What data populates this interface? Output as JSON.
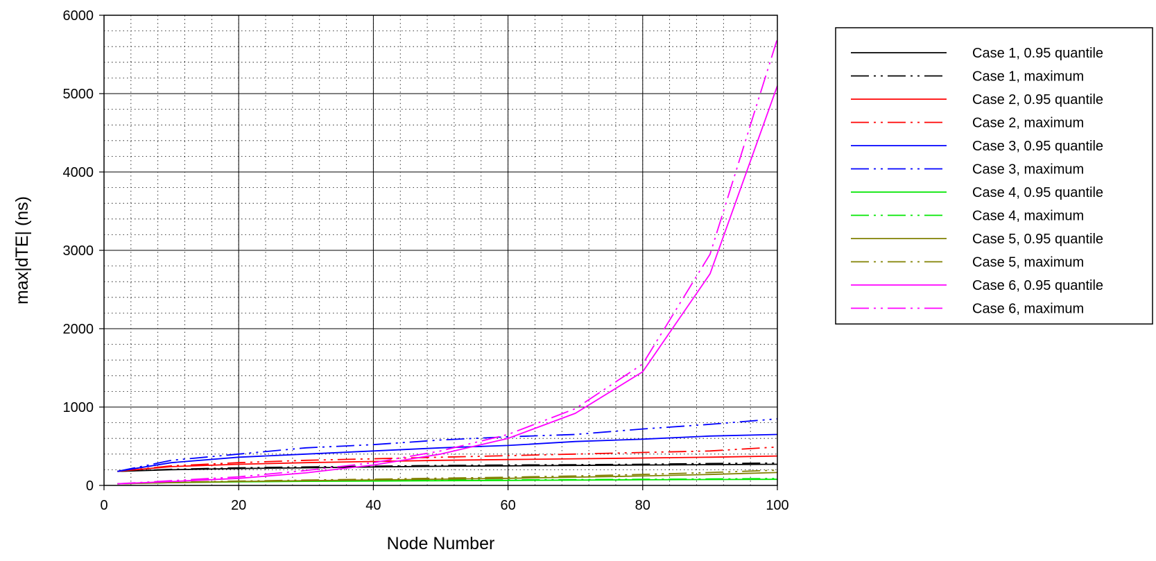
{
  "chart_data": {
    "type": "line",
    "title": "",
    "xlabel": "Node Number",
    "ylabel": "max|dTE| (ns)",
    "xlim": [
      0,
      100
    ],
    "ylim": [
      0,
      6000
    ],
    "x_ticks": [
      0,
      20,
      40,
      60,
      80,
      100
    ],
    "y_ticks": [
      0,
      1000,
      2000,
      3000,
      4000,
      5000,
      6000
    ],
    "grid": {
      "major": true,
      "minor": true,
      "minor_x_step": 4,
      "minor_y_step": 200
    },
    "legend_position": "right",
    "x": [
      2,
      10,
      20,
      30,
      40,
      50,
      60,
      70,
      80,
      90,
      100
    ],
    "series": [
      {
        "name": "Case 1, 0.95 quantile",
        "color": "#000000",
        "style": "solid",
        "values": [
          180,
          200,
          215,
          225,
          235,
          245,
          250,
          255,
          260,
          265,
          270
        ]
      },
      {
        "name": "Case 1, maximum",
        "color": "#000000",
        "style": "dashdot",
        "values": [
          180,
          205,
          225,
          235,
          245,
          255,
          260,
          265,
          270,
          280,
          285
        ]
      },
      {
        "name": "Case 2, 0.95 quantile",
        "color": "#ff0000",
        "style": "solid",
        "values": [
          180,
          240,
          270,
          290,
          305,
          320,
          330,
          340,
          350,
          360,
          375
        ]
      },
      {
        "name": "Case 2, maximum",
        "color": "#ff0000",
        "style": "dashdot",
        "values": [
          180,
          250,
          290,
          320,
          340,
          360,
          380,
          400,
          420,
          440,
          490
        ]
      },
      {
        "name": "Case 3, 0.95 quantile",
        "color": "#0000ff",
        "style": "solid",
        "values": [
          180,
          290,
          360,
          400,
          440,
          480,
          510,
          560,
          590,
          630,
          650
        ]
      },
      {
        "name": "Case 3, maximum",
        "color": "#0000ff",
        "style": "dashdot",
        "values": [
          180,
          320,
          400,
          480,
          520,
          580,
          620,
          650,
          720,
          780,
          850
        ]
      },
      {
        "name": "Case 4, 0.95 quantile",
        "color": "#00e600",
        "style": "solid",
        "values": [
          20,
          35,
          45,
          52,
          56,
          60,
          64,
          68,
          72,
          75,
          78
        ]
      },
      {
        "name": "Case 4, maximum",
        "color": "#00e600",
        "style": "dashdot",
        "values": [
          20,
          40,
          50,
          58,
          62,
          66,
          70,
          74,
          78,
          82,
          88
        ]
      },
      {
        "name": "Case 5, 0.95 quantile",
        "color": "#808000",
        "style": "solid",
        "values": [
          20,
          35,
          50,
          60,
          70,
          80,
          90,
          105,
          120,
          140,
          165
        ]
      },
      {
        "name": "Case 5, maximum",
        "color": "#808000",
        "style": "dashdot",
        "values": [
          20,
          40,
          55,
          68,
          80,
          92,
          105,
          120,
          140,
          165,
          195
        ]
      },
      {
        "name": "Case 6, 0.95 quantile",
        "color": "#ff00ff",
        "style": "solid",
        "values": [
          20,
          50,
          90,
          160,
          260,
          400,
          600,
          920,
          1450,
          2700,
          5100
        ]
      },
      {
        "name": "Case 6, maximum",
        "color": "#ff00ff",
        "style": "dashdot",
        "values": [
          20,
          60,
          110,
          190,
          290,
          440,
          650,
          980,
          1550,
          2950,
          5700
        ]
      }
    ]
  }
}
